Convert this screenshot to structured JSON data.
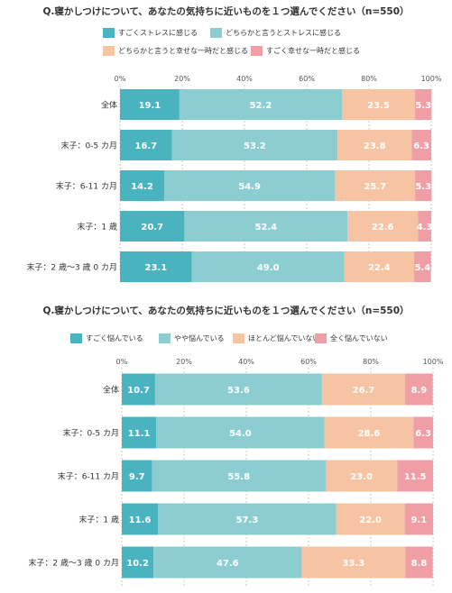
{
  "chart_data": [
    {
      "type": "bar",
      "title": "Q.寝かしつけについて、あなたの気持ちに近いものを１つ選んでください（n=550）",
      "categories": [
        "全体",
        "末子：0-5 カ月",
        "末子：6-11 カ月",
        "末子：1 歳",
        "末子：2 歳～3 歳 0 カ月"
      ],
      "xlim": [
        0,
        100
      ],
      "xticks": [
        "0%",
        "20%",
        "40%",
        "60%",
        "80%",
        "100%"
      ],
      "grid": true,
      "legend": "top",
      "series": [
        {
          "name": "すごくストレスに感じる",
          "color": "#4ab3c0",
          "values": [
            19.1,
            16.7,
            14.2,
            20.7,
            23.1
          ]
        },
        {
          "name": "どちらかと言うとストレスに感じる",
          "color": "#8ccdd2",
          "values": [
            52.2,
            53.2,
            54.9,
            52.4,
            49.0
          ]
        },
        {
          "name": "どちらかと言うと幸せな一時だと感じる",
          "color": "#f6c4a2",
          "values": [
            23.5,
            23.8,
            25.7,
            22.6,
            22.4
          ]
        },
        {
          "name": "すごく幸せな一時だと感じる",
          "color": "#ef9ea6",
          "values": [
            5.3,
            6.3,
            5.3,
            4.3,
            5.4
          ]
        }
      ]
    },
    {
      "type": "bar",
      "title": "Q.寝かしつけについて、あなたの気持ちに近いものを１つ選んでください（n=550）",
      "categories": [
        "全体",
        "末子：0-5 カ月",
        "末子：6-11 カ月",
        "末子：1 歳",
        "末子：2 歳～3 歳 0 カ月"
      ],
      "xlim": [
        0,
        100
      ],
      "xticks": [
        "0%",
        "20%",
        "40%",
        "60%",
        "80%",
        "100%"
      ],
      "grid": true,
      "legend": "top",
      "series": [
        {
          "name": "すごく悩んでいる",
          "color": "#4ab3c0",
          "values": [
            10.7,
            11.1,
            9.7,
            11.6,
            10.2
          ]
        },
        {
          "name": "やや悩んでいる",
          "color": "#8ccdd2",
          "values": [
            53.6,
            54.0,
            55.8,
            57.3,
            47.6
          ]
        },
        {
          "name": "ほとんど悩んでいない",
          "color": "#f6c4a2",
          "values": [
            26.7,
            28.6,
            23.0,
            22.0,
            33.3
          ]
        },
        {
          "name": "全く悩んでいない",
          "color": "#ef9ea6",
          "values": [
            8.9,
            6.3,
            11.5,
            9.1,
            8.8
          ]
        }
      ]
    }
  ]
}
